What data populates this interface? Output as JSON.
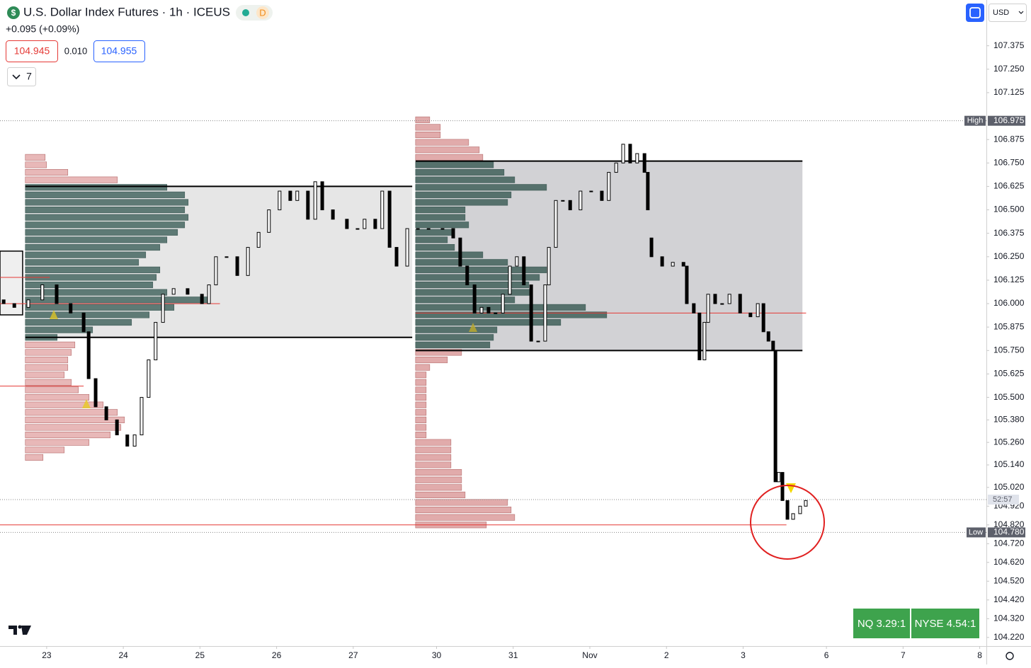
{
  "header": {
    "symbol_icon": "$",
    "title": "U.S. Dollar Index Futures · 1h · ICEUS",
    "badge": "D",
    "change": "+0.095 (+0.09%)",
    "bid": "104.945",
    "spread": "0.010",
    "ask": "104.955",
    "indicator_count": "7",
    "currency": "USD"
  },
  "footer": {
    "nq": "NQ 3.29:1",
    "nyse": "NYSE 4.54:1"
  },
  "chart_data": {
    "type": "candlestick",
    "xlim": [
      0,
      296
    ],
    "xticks": [
      {
        "value": 14,
        "label": "23"
      },
      {
        "value": 37,
        "label": "24"
      },
      {
        "value": 60,
        "label": "25"
      },
      {
        "value": 83,
        "label": "26"
      },
      {
        "value": 106,
        "label": "27"
      },
      {
        "value": 131,
        "label": "30"
      },
      {
        "value": 154,
        "label": "31"
      },
      {
        "value": 177,
        "label": "Nov"
      },
      {
        "value": 200,
        "label": "2"
      },
      {
        "value": 223,
        "label": "3"
      },
      {
        "value": 248,
        "label": "6"
      },
      {
        "value": 271,
        "label": "7"
      },
      {
        "value": 294,
        "label": "8"
      }
    ],
    "ylim": [
      104.174,
      107.619
    ],
    "yticks": [
      107.375,
      {
        "value": 107.25,
        "label": "107.250"
      },
      107.125,
      106.875,
      {
        "value": 106.75,
        "label": "106.750"
      },
      106.625,
      {
        "value": 106.5,
        "label": "106.500"
      },
      106.375,
      {
        "value": 106.25,
        "label": "106.250"
      },
      106.125,
      {
        "value": 106,
        "label": "106.000"
      },
      105.875,
      {
        "value": 105.75,
        "label": "105.750"
      },
      105.625,
      {
        "value": 105.5,
        "label": "105.500"
      },
      {
        "value": 105.38,
        "label": "105.380"
      },
      {
        "value": 105.26,
        "label": "105.260"
      },
      {
        "value": 105.14,
        "label": "105.140"
      },
      {
        "value": 105.02,
        "label": "105.020"
      },
      {
        "value": 104.92,
        "label": "104.920"
      },
      {
        "value": 104.82,
        "label": "104.820"
      },
      {
        "value": 104.72,
        "label": "104.720"
      },
      {
        "value": 104.62,
        "label": "104.620"
      },
      {
        "value": 104.52,
        "label": "104.520"
      },
      {
        "value": 104.42,
        "label": "104.420"
      },
      {
        "value": 104.32,
        "label": "104.320"
      },
      {
        "value": 104.22,
        "label": "104.220"
      }
    ],
    "grid": false,
    "up_color": "#ffffff",
    "down_color": "#000000",
    "x": [
      1.1,
      4.3,
      8.5,
      12.7,
      17,
      21.2,
      25.1,
      26.6,
      28.7,
      31.9,
      35.1,
      38.2,
      40.4,
      42.5,
      44.6,
      46.7,
      48.9,
      52.1,
      56.3,
      60.6,
      62.7,
      64.8,
      68,
      71.2,
      74.4,
      77.6,
      80.7,
      83.9,
      87.1,
      89.2,
      92.4,
      94.6,
      96.7,
      99.9,
      104.1,
      107.3,
      109.4,
      112.6,
      114.7,
      116.9,
      119,
      122.2,
      125.4,
      128.6,
      132.8,
      136,
      138.1,
      140.2,
      142.4,
      144.5,
      146.6,
      148.7,
      150.9,
      153,
      155.1,
      157.2,
      159.4,
      161.5,
      163.6,
      164.7,
      166.8,
      168.9,
      171.1,
      174.2,
      177.4,
      180.6,
      182.7,
      184.9,
      187,
      189.1,
      191.2,
      193.4,
      194.4,
      195.5,
      198.7,
      201.9,
      205.1,
      206.1,
      208.2,
      209.9,
      211.4,
      212.5,
      214.6,
      216.7,
      218.9,
      222.1,
      225.2,
      227.4,
      229.1,
      230.6,
      232,
      232.7,
      233.7,
      234.8,
      236.3,
      238,
      240.1,
      241.8
    ],
    "open": [
      106.02,
      106.0,
      105.98,
      106.02,
      106.1,
      106.0,
      105.95,
      105.85,
      105.6,
      105.45,
      105.38,
      105.3,
      105.24,
      105.3,
      105.5,
      105.7,
      105.9,
      106.05,
      106.08,
      106.05,
      106.0,
      106.1,
      106.25,
      106.25,
      106.15,
      106.3,
      106.38,
      106.5,
      106.6,
      106.55,
      106.6,
      106.45,
      106.65,
      106.5,
      106.45,
      106.4,
      106.4,
      106.45,
      106.4,
      106.6,
      106.3,
      106.2,
      106.4,
      106.4,
      106.4,
      106.4,
      106.35,
      106.2,
      106.1,
      105.95,
      105.98,
      105.95,
      105.95,
      106.05,
      106.2,
      106.25,
      106.1,
      105.8,
      105.8,
      106.1,
      106.3,
      106.55,
      106.55,
      106.5,
      106.6,
      106.6,
      106.55,
      106.7,
      106.75,
      106.85,
      106.75,
      106.8,
      106.7,
      106.35,
      106.25,
      106.2,
      106.22,
      106.2,
      106.0,
      105.95,
      105.7,
      105.9,
      106.05,
      106.0,
      106.0,
      106.05,
      105.95,
      105.93,
      106.0,
      105.85,
      105.8,
      105.75,
      105.05,
      105.1,
      104.95,
      104.85,
      104.88,
      104.92
    ],
    "high": {
      "label": "High",
      "value": 106.975
    },
    "low": {
      "label": "Low",
      "value": 104.78,
      "value_label": "104.780"
    },
    "close": [
      106.0,
      105.98,
      106.02,
      106.1,
      106.0,
      105.95,
      105.85,
      105.6,
      105.45,
      105.38,
      105.3,
      105.24,
      105.3,
      105.5,
      105.7,
      105.9,
      106.05,
      106.08,
      106.05,
      106.0,
      106.1,
      106.25,
      106.25,
      106.15,
      106.3,
      106.38,
      106.5,
      106.6,
      106.55,
      106.6,
      106.45,
      106.65,
      106.5,
      106.45,
      106.4,
      106.4,
      106.45,
      106.4,
      106.6,
      106.3,
      106.2,
      106.4,
      106.4,
      106.4,
      106.4,
      106.35,
      106.2,
      106.1,
      105.95,
      105.98,
      105.95,
      105.95,
      106.05,
      106.2,
      106.25,
      106.1,
      105.8,
      105.8,
      106.1,
      106.3,
      106.55,
      106.55,
      106.5,
      106.6,
      106.6,
      106.55,
      106.7,
      106.75,
      106.85,
      106.75,
      106.8,
      106.7,
      106.5,
      106.25,
      106.2,
      106.22,
      106.2,
      106.0,
      105.95,
      105.7,
      105.9,
      106.05,
      106.0,
      106.0,
      106.05,
      105.95,
      105.93,
      106.0,
      105.85,
      105.8,
      105.75,
      105.05,
      105.1,
      104.95,
      104.85,
      104.88,
      104.92,
      104.95
    ],
    "profiles": [
      {
        "start": 7.6,
        "end": 123.7,
        "vah": 106.625,
        "val": 105.82,
        "area_color": "#e6e6e6",
        "inside_color": "#56746f",
        "outside_color": "#e4abab",
        "prices": [
          106.78,
          106.74,
          106.7,
          106.66,
          106.62,
          106.58,
          106.54,
          106.5,
          106.46,
          106.42,
          106.38,
          106.34,
          106.3,
          106.26,
          106.22,
          106.18,
          106.14,
          106.1,
          106.06,
          106.02,
          105.98,
          105.94,
          105.9,
          105.86,
          105.82,
          105.78,
          105.74,
          105.7,
          105.66,
          105.62,
          105.58,
          105.54,
          105.5,
          105.46,
          105.42,
          105.38,
          105.34,
          105.3,
          105.26,
          105.22,
          105.18
        ],
        "volumes": [
          28,
          30,
          60,
          130,
          200,
          225,
          230,
          225,
          230,
          225,
          215,
          200,
          190,
          170,
          160,
          190,
          185,
          180,
          200,
          260,
          210,
          175,
          150,
          95,
          45,
          70,
          65,
          60,
          60,
          55,
          65,
          75,
          90,
          110,
          130,
          140,
          135,
          120,
          90,
          55,
          25
        ]
      },
      {
        "start": 124.7,
        "end": 240.8,
        "vah": 106.76,
        "val": 105.75,
        "area_color": "#d2d2d5",
        "inside_color": "#4f6b66",
        "outside_color": "#dc9c9c",
        "prices": [
          106.98,
          106.94,
          106.9,
          106.86,
          106.82,
          106.78,
          106.74,
          106.7,
          106.66,
          106.62,
          106.58,
          106.54,
          106.5,
          106.46,
          106.42,
          106.38,
          106.34,
          106.3,
          106.26,
          106.22,
          106.18,
          106.14,
          106.1,
          106.06,
          106.02,
          105.98,
          105.94,
          105.9,
          105.86,
          105.82,
          105.78,
          105.74,
          105.7,
          105.66,
          105.62,
          105.58,
          105.54,
          105.5,
          105.46,
          105.42,
          105.38,
          105.34,
          105.3,
          105.26,
          105.22,
          105.18,
          105.14,
          105.1,
          105.06,
          105.02,
          104.98,
          104.94,
          104.9,
          104.86,
          104.82
        ],
        "volumes": [
          20,
          35,
          35,
          75,
          90,
          95,
          110,
          125,
          140,
          185,
          135,
          130,
          70,
          70,
          75,
          55,
          45,
          55,
          95,
          130,
          185,
          175,
          160,
          165,
          140,
          240,
          270,
          205,
          115,
          110,
          105,
          65,
          45,
          20,
          15,
          15,
          15,
          15,
          15,
          15,
          15,
          15,
          15,
          50,
          50,
          50,
          50,
          65,
          65,
          65,
          70,
          130,
          135,
          140,
          100
        ]
      }
    ],
    "boxes": [
      {
        "top": 106.28,
        "bottom": 105.94,
        "x": [
          0,
          6.8
        ]
      }
    ],
    "lines": [
      {
        "value": 106.0,
        "color": "#e53935",
        "x": [
          0,
          66
        ]
      },
      {
        "value": 105.95,
        "color": "#e53935",
        "x": [
          124.7,
          241.9
        ]
      },
      {
        "value": 105.56,
        "color": "#e53935",
        "x": [
          0,
          25.1
        ]
      },
      {
        "value": 106.14,
        "color": "#e53935",
        "x": [
          0,
          14.9
        ]
      },
      {
        "value": 104.82,
        "color": "#e53935",
        "x": [
          0,
          236
        ]
      }
    ],
    "countdown": {
      "label": "52:57",
      "value": 104.955
    }
  }
}
